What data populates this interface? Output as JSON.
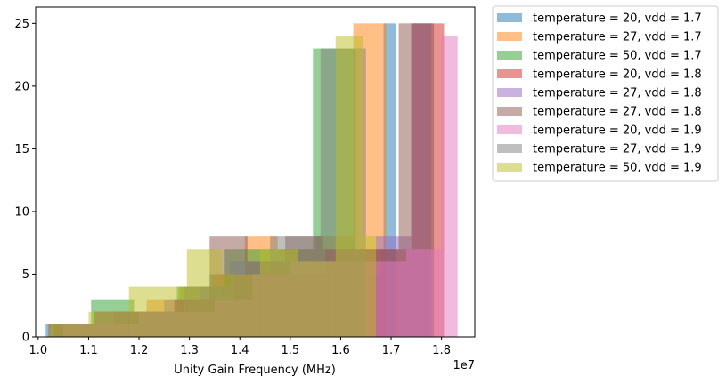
{
  "chart_data": {
    "type": "histogram",
    "xlabel": "Unity Gain Frequency (MHz)",
    "ylabel": "",
    "title": "",
    "x_offset_text": "1e7",
    "xlim": [
      0.995,
      1.866
    ],
    "ylim": [
      0,
      26.3
    ],
    "x_ticks": [
      1.0,
      1.1,
      1.2,
      1.3,
      1.4,
      1.5,
      1.6,
      1.7,
      1.8
    ],
    "x_tick_labels": [
      "1.0",
      "1.1",
      "1.2",
      "1.3",
      "1.4",
      "1.5",
      "1.6",
      "1.7",
      "1.8"
    ],
    "y_ticks": [
      0,
      5,
      10,
      15,
      20,
      25
    ],
    "y_tick_labels": [
      "0",
      "5",
      "10",
      "15",
      "20",
      "25"
    ],
    "grid": false,
    "legend_placement": "outside top-right",
    "alpha": 0.5,
    "series": [
      {
        "name": "temperature = 20, vdd = 1.7",
        "color": "#1f77b4",
        "edges": [
          1.015,
          1.08,
          1.145,
          1.21,
          1.275,
          1.34,
          1.405,
          1.47,
          1.535,
          1.6,
          1.68,
          1.685,
          1.71
        ],
        "counts": [
          1,
          1,
          1,
          2,
          3,
          5,
          5,
          5,
          5,
          5,
          7,
          25
        ]
      },
      {
        "name": "temperature = 27, vdd = 1.7",
        "color": "#ff7f0e",
        "edges": [
          1.02,
          1.085,
          1.15,
          1.215,
          1.28,
          1.345,
          1.41,
          1.475,
          1.55,
          1.625,
          1.69
        ],
        "counts": [
          1,
          1,
          2,
          3,
          4,
          5,
          8,
          7,
          8,
          25
        ]
      },
      {
        "name": "temperature = 50, vdd = 1.7",
        "color": "#2ca02c",
        "edges": [
          1.025,
          1.105,
          1.19,
          1.275,
          1.37,
          1.455,
          1.545,
          1.63,
          1.67
        ],
        "counts": [
          1,
          3,
          2,
          4,
          7,
          7,
          23,
          6
        ]
      },
      {
        "name": "temperature = 20, vdd = 1.8",
        "color": "#d62728",
        "edges": [
          1.03,
          1.09,
          1.15,
          1.21,
          1.27,
          1.33,
          1.39,
          1.45,
          1.51,
          1.57,
          1.63,
          1.74,
          1.805
        ],
        "counts": [
          1,
          1,
          2,
          2,
          3,
          3,
          5,
          5,
          5,
          7,
          7,
          25
        ]
      },
      {
        "name": "temperature = 27, vdd = 1.8",
        "color": "#9467bd",
        "edges": [
          1.04,
          1.11,
          1.18,
          1.25,
          1.32,
          1.39,
          1.46,
          1.53,
          1.6,
          1.67,
          1.74,
          1.78
        ],
        "counts": [
          1,
          2,
          2,
          3,
          4,
          5,
          6,
          6,
          7,
          8,
          25
        ]
      },
      {
        "name": "temperature = 27, vdd = 1.8",
        "color": "#8c564b",
        "edges": [
          1.035,
          1.11,
          1.19,
          1.27,
          1.34,
          1.415,
          1.49,
          1.565,
          1.64,
          1.715,
          1.785
        ],
        "counts": [
          1,
          2,
          2,
          3,
          8,
          6,
          8,
          7,
          7,
          25
        ]
      },
      {
        "name": "temperature = 20, vdd = 1.9",
        "color": "#e377c2",
        "edges": [
          1.05,
          1.125,
          1.2,
          1.275,
          1.35,
          1.425,
          1.5,
          1.575,
          1.66,
          1.73,
          1.8,
          1.832
        ],
        "counts": [
          1,
          1,
          2,
          2,
          3,
          5,
          6,
          6,
          6,
          7,
          24
        ]
      },
      {
        "name": "temperature = 27, vdd = 1.9",
        "color": "#7f7f7f",
        "edges": [
          1.02,
          1.11,
          1.2,
          1.29,
          1.38,
          1.46,
          1.56,
          1.6,
          1.65
        ],
        "counts": [
          1,
          2,
          2,
          4,
          6,
          8,
          23,
          23
        ]
      },
      {
        "name": "temperature = 50, vdd = 1.9",
        "color": "#bcbd22",
        "edges": [
          1.025,
          1.1,
          1.18,
          1.295,
          1.365,
          1.44,
          1.515,
          1.59,
          1.645,
          1.67
        ],
        "counts": [
          1,
          2,
          4,
          7,
          5,
          7,
          6,
          24,
          8
        ]
      }
    ]
  }
}
